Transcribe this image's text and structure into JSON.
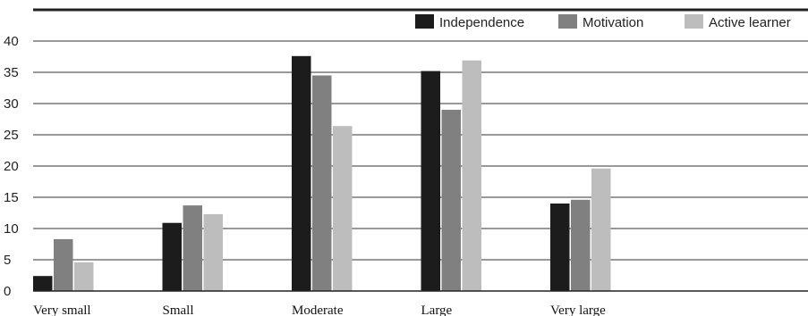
{
  "chart_data": {
    "type": "bar",
    "categories": [
      "Very small",
      "Small",
      "Moderate",
      "Large",
      "Very large"
    ],
    "series": [
      {
        "name": "Independence",
        "color": "#1c1c1c",
        "values": [
          2.4,
          10.9,
          37.6,
          35.2,
          14.0
        ]
      },
      {
        "name": "Motivation",
        "color": "#808080",
        "values": [
          8.3,
          13.7,
          34.5,
          29.0,
          14.6
        ]
      },
      {
        "name": "Active learner",
        "color": "#bdbdbd",
        "values": [
          4.6,
          12.3,
          26.4,
          36.9,
          19.6
        ]
      }
    ],
    "yticks": [
      "0",
      "5",
      "10",
      "15",
      "20",
      "25",
      "30",
      "35",
      "40"
    ],
    "ylim": [
      0,
      40
    ],
    "grid": true,
    "legend": "top-right",
    "title": "",
    "xlabel": "",
    "ylabel": ""
  }
}
